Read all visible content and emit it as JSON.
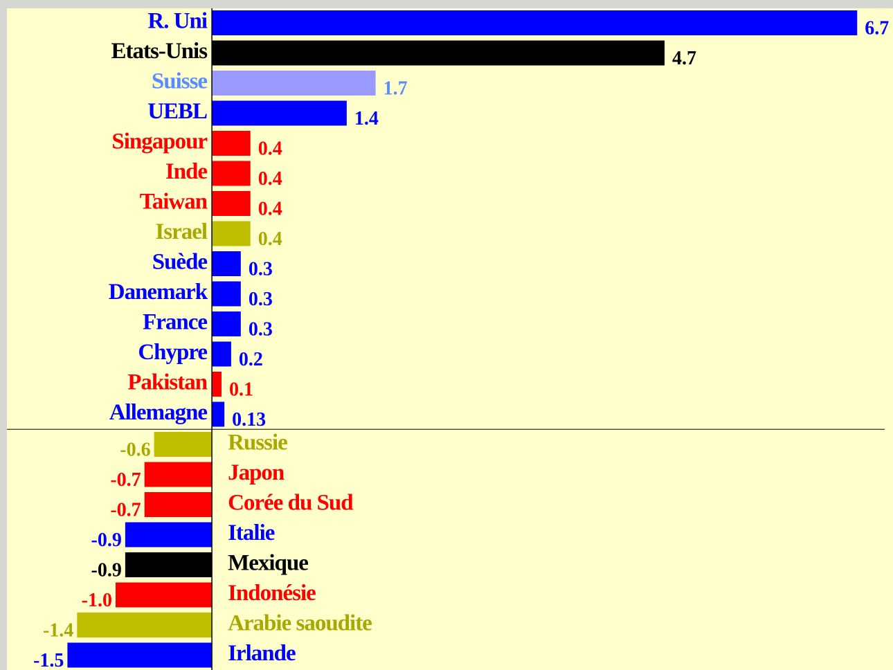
{
  "chart_data": {
    "type": "bar",
    "orientation": "horizontal",
    "categories": [
      "R. Uni",
      "Etats-Unis",
      "Suisse",
      "UEBL",
      "Singapour",
      "Inde",
      "Taiwan",
      "Israel",
      "Suède",
      "Danemark",
      "France",
      "Chypre",
      "Pakistan",
      "Allemagne",
      "Russie",
      "Japon",
      "Corée du Sud",
      "Italie",
      "Mexique",
      "Indonésie",
      "Arabie saoudite",
      "Irlande"
    ],
    "values": [
      6.7,
      4.7,
      1.7,
      1.4,
      0.4,
      0.4,
      0.4,
      0.4,
      0.3,
      0.3,
      0.3,
      0.2,
      0.1,
      0.13,
      -0.6,
      -0.7,
      -0.7,
      -0.9,
      -0.9,
      -1.0,
      -1.4,
      -1.5
    ],
    "value_labels": [
      "6.7",
      "4.7",
      "1.7",
      "1.4",
      "0.4",
      "0.4",
      "0.4",
      "0.4",
      "0.3",
      "0.3",
      "0.3",
      "0.2",
      "0.1",
      "0.13",
      "-0.6",
      "-0.7",
      "-0.7",
      "-0.9",
      "-0.9",
      "-1.0",
      "-1.4",
      "-1.5"
    ],
    "colors": [
      "#0000ff",
      "#000000",
      "#9999ff",
      "#0000ff",
      "#ff0000",
      "#ff0000",
      "#ff0000",
      "#bfbf00",
      "#0000ff",
      "#0000ff",
      "#0000ff",
      "#0000ff",
      "#ff0000",
      "#0000ff",
      "#bfbf00",
      "#ff0000",
      "#ff0000",
      "#0000ff",
      "#000000",
      "#ff0000",
      "#bfbf00",
      "#0000ff"
    ],
    "label_colors": [
      "#0000ff",
      "#000000",
      "#5b8cff",
      "#0000ff",
      "#ff0000",
      "#ff0000",
      "#ff0000",
      "#a8a800",
      "#0000ff",
      "#0000ff",
      "#0000ff",
      "#0000ff",
      "#ff0000",
      "#0000ff",
      "#a8a800",
      "#ff0000",
      "#ff0000",
      "#0000ff",
      "#000000",
      "#ff0000",
      "#a8a800",
      "#0000ff"
    ],
    "xlim": [
      -2.2,
      7.0
    ]
  }
}
